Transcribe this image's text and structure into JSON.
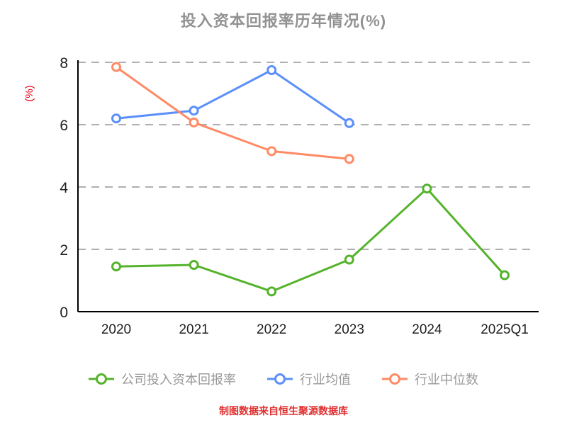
{
  "chart_data": {
    "type": "line",
    "title": "投入资本回报率历年情况(%)",
    "ylabel": "(%)",
    "footer": "制图数据来自恒生聚源数据库",
    "categories": [
      "2020",
      "2021",
      "2022",
      "2023",
      "2024",
      "2025Q1"
    ],
    "yticks": [
      0,
      2,
      4,
      6,
      8
    ],
    "ylim": [
      0,
      8
    ],
    "grid": "horizontal-dashed",
    "legend_position": "bottom",
    "series": [
      {
        "name": "公司投入资本回报率",
        "color": "#54b32b",
        "values": [
          1.45,
          1.5,
          0.65,
          1.67,
          3.95,
          1.17
        ]
      },
      {
        "name": "行业均值",
        "color": "#5b8ff9",
        "values": [
          6.2,
          6.45,
          7.75,
          6.05
        ]
      },
      {
        "name": "行业中位数",
        "color": "#ff8a65",
        "values": [
          7.85,
          6.07,
          5.15,
          4.9
        ]
      }
    ],
    "style": {
      "background": "#ffffff",
      "title_color": "#929292",
      "axis_color": "#000000",
      "tick_color": "#1f1f1f",
      "grid_color": "#b0b0b0",
      "legend_text_color": "#999999",
      "ylabel_color": "#e60012",
      "footer_color": "#e02f2f"
    }
  }
}
